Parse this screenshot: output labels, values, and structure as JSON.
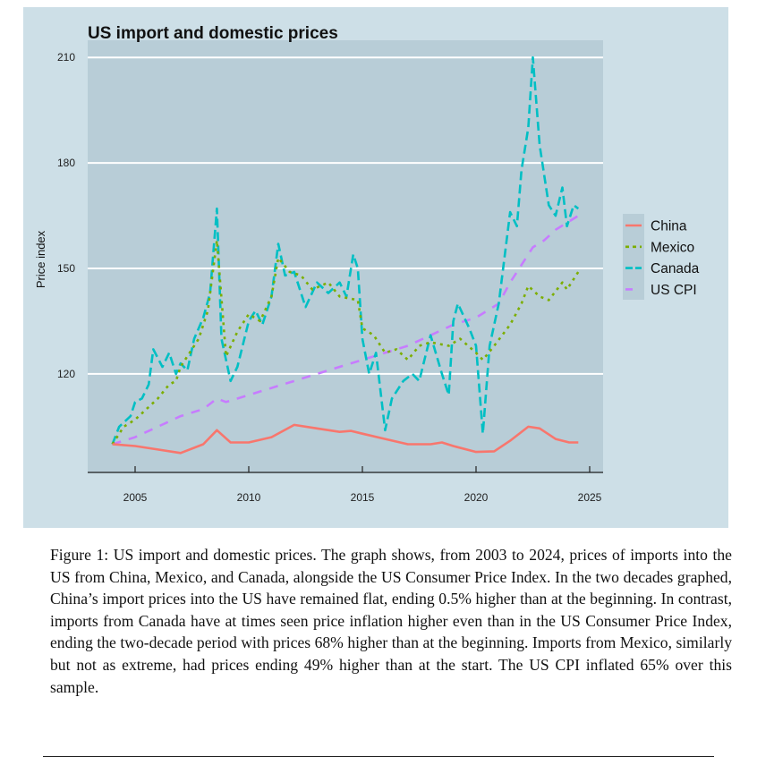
{
  "chart_data": {
    "type": "line",
    "title": "US import and domestic prices",
    "xlabel": "",
    "ylabel": "Price index",
    "xlim": [
      2003,
      2025.5
    ],
    "ylim": [
      82,
      215
    ],
    "xticks": [
      2005,
      2010,
      2015,
      2020,
      2025
    ],
    "yticks": [
      120,
      150,
      180,
      210
    ],
    "grid": "horizontal",
    "legend_position": "right",
    "series": [
      {
        "name": "China",
        "color": "#f8766d",
        "style": "solid",
        "x": [
          2004,
          2005,
          2006,
          2007,
          2008,
          2008.6,
          2009.2,
          2010,
          2011,
          2012,
          2013,
          2014,
          2014.5,
          2015,
          2016,
          2017,
          2018,
          2018.5,
          2019,
          2020,
          2020.8,
          2021.5,
          2022.3,
          2022.8,
          2023.5,
          2024.1,
          2024.5
        ],
        "y": [
          100,
          99.5,
          98.5,
          97.5,
          100,
          104,
          100.5,
          100.5,
          102,
          105.5,
          104.5,
          103.5,
          103.8,
          103,
          101.5,
          100,
          100,
          100.5,
          99.5,
          97.8,
          98,
          101,
          105,
          104.5,
          101.5,
          100.5,
          100.5
        ]
      },
      {
        "name": "Mexico",
        "color": "#7cae00",
        "style": "dotted",
        "x": [
          2004,
          2004.5,
          2005,
          2005.5,
          2006,
          2006.5,
          2006.8,
          2007,
          2007.8,
          2008.2,
          2008.6,
          2009,
          2009.5,
          2010,
          2010.5,
          2011,
          2011.3,
          2011.8,
          2012.3,
          2012.8,
          2013.5,
          2014,
          2014.8,
          2015,
          2015.5,
          2016,
          2016.5,
          2017,
          2017.5,
          2018,
          2018.8,
          2019.3,
          2020,
          2020.3,
          2020.8,
          2021.5,
          2022,
          2022.3,
          2022.8,
          2023.2,
          2023.8,
          2024,
          2024.5
        ],
        "y": [
          100,
          105,
          107,
          110,
          113,
          117,
          118,
          122,
          130,
          138,
          158,
          125,
          132,
          137,
          135,
          142,
          153,
          149,
          148,
          144,
          146,
          142,
          141,
          133,
          131,
          126,
          127,
          124,
          128,
          129,
          128,
          130,
          126,
          124,
          128,
          134,
          140,
          145,
          142,
          141,
          146,
          144,
          149
        ]
      },
      {
        "name": "Canada",
        "color": "#00bfc4",
        "style": "dashed",
        "x": [
          2004,
          2004.3,
          2004.8,
          2005,
          2005.3,
          2005.6,
          2005.8,
          2006.2,
          2006.5,
          2006.8,
          2007,
          2007.3,
          2007.6,
          2008,
          2008.3,
          2008.6,
          2008.8,
          2009.2,
          2009.5,
          2010,
          2010.3,
          2010.6,
          2011,
          2011.3,
          2011.6,
          2012,
          2012.5,
          2013,
          2013.5,
          2014,
          2014.3,
          2014.6,
          2014.8,
          2015,
          2015.3,
          2015.6,
          2016,
          2016.3,
          2016.8,
          2017.2,
          2017.5,
          2018,
          2018.5,
          2018.8,
          2019,
          2019.2,
          2019.7,
          2020,
          2020.3,
          2020.6,
          2021,
          2021.5,
          2021.8,
          2022,
          2022.3,
          2022.5,
          2022.8,
          2023.2,
          2023.5,
          2023.8,
          2024,
          2024.3,
          2024.5
        ],
        "y": [
          100,
          105,
          108,
          112,
          113,
          117,
          127,
          122,
          126,
          120,
          123,
          121,
          130,
          136,
          143,
          167,
          130,
          118,
          122,
          135,
          138,
          134,
          142,
          157,
          148,
          149,
          139,
          146,
          143,
          146,
          142,
          154,
          150,
          130,
          120,
          126,
          104,
          113,
          118,
          120,
          118,
          131,
          120,
          114,
          135,
          140,
          133,
          128,
          103,
          128,
          140,
          166,
          162,
          178,
          190,
          210,
          185,
          168,
          165,
          173,
          162,
          168,
          167
        ]
      },
      {
        "name": "US CPI",
        "color": "#c77cff",
        "style": "longdash",
        "x": [
          2004,
          2005,
          2006,
          2007,
          2008,
          2008.6,
          2009,
          2010,
          2011,
          2012,
          2013,
          2014,
          2015,
          2016,
          2017,
          2018,
          2019,
          2020,
          2021,
          2021.5,
          2022,
          2022.5,
          2023,
          2023.5,
          2024,
          2024.5
        ],
        "y": [
          100,
          102,
          105,
          108,
          110,
          113,
          112,
          114,
          116,
          118,
          120,
          122,
          124,
          126,
          128,
          131,
          134,
          136,
          140,
          146,
          151,
          156,
          158,
          161,
          163,
          165
        ]
      }
    ]
  },
  "caption": "Figure 1: US import and domestic prices. The graph shows, from 2003 to 2024, prices of imports into the US from China, Mexico, and Canada, alongside the US Consumer Price Index. In the two decades graphed, China’s import prices into the US have remained flat, ending 0.5% higher than at the beginning. In contrast, imports from Canada have at times seen price inflation higher even than in the US Consumer Price Index, ending the two-decade period with prices 68% higher than at the beginning. Imports from Mexico, similarly but not as extreme, had prices ending 49% higher than at the start. The US CPI inflated 65% over this sample."
}
